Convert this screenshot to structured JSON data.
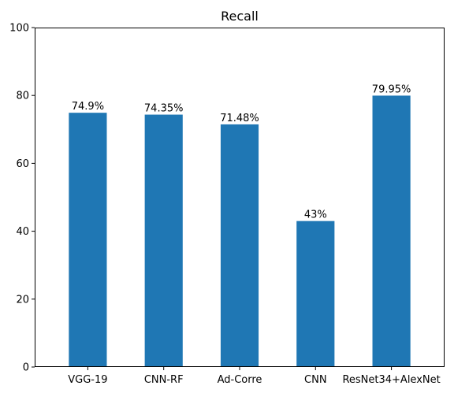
{
  "chart_data": {
    "type": "bar",
    "title": "Recall",
    "xlabel": "",
    "ylabel": "",
    "categories": [
      "VGG-19",
      "CNN-RF",
      "Ad-Corre",
      "CNN",
      "ResNet34+AlexNet"
    ],
    "values": [
      74.9,
      74.35,
      71.48,
      43,
      79.95
    ],
    "data_labels": [
      "74.9%",
      "74.35%",
      "71.48%",
      "43%",
      "79.95%"
    ],
    "ylim": [
      0,
      100
    ],
    "yticks": [
      0,
      20,
      40,
      60,
      80,
      100
    ],
    "grid": false,
    "legend": "none",
    "bar_color": "#1f77b4"
  }
}
